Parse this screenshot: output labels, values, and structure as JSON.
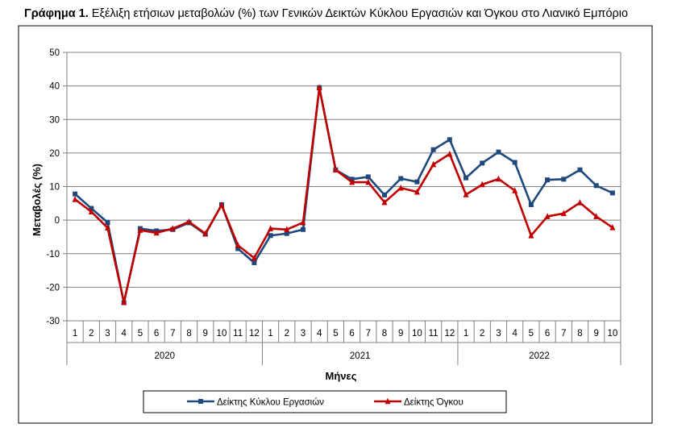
{
  "title": {
    "label": "Γράφημα 1.",
    "text": " Εξέλιξη ετήσιων μεταβολών (%) των Γενικών Δεικτών Κύκλου Εργασιών και Όγκου στο Λιανικό Εμπόριο"
  },
  "chart_data": {
    "type": "line",
    "ylabel": "Μεταβολές (%)",
    "xlabel": "Μήνες",
    "ylim": [
      -30,
      50
    ],
    "yticks": [
      -30,
      -20,
      -10,
      0,
      10,
      20,
      30,
      40,
      50
    ],
    "grid": true,
    "legend_position": "bottom",
    "years": [
      {
        "label": "2020",
        "months": [
          "1",
          "2",
          "3",
          "4",
          "5",
          "6",
          "7",
          "8",
          "9",
          "10",
          "11",
          "12"
        ]
      },
      {
        "label": "2021",
        "months": [
          "1",
          "2",
          "3",
          "4",
          "5",
          "6",
          "7",
          "8",
          "9",
          "10",
          "11",
          "12"
        ]
      },
      {
        "label": "2022",
        "months": [
          "1",
          "2",
          "3",
          "4",
          "5",
          "6",
          "7",
          "8",
          "9",
          "10"
        ]
      }
    ],
    "series": [
      {
        "name": "Δείκτης Κύκλου Εργασιών",
        "color": "#1f497d",
        "marker": "square",
        "values": [
          7.8,
          3.5,
          -0.7,
          -24.6,
          -2.5,
          -3.2,
          -2.8,
          -0.8,
          -4.2,
          4.6,
          -8.5,
          -12.7,
          -4.6,
          -4.0,
          -2.8,
          39.5,
          15.0,
          12.2,
          12.9,
          7.5,
          12.4,
          11.4,
          21.0,
          24.0,
          12.6,
          17.0,
          20.3,
          17.2,
          4.6,
          12.0,
          12.2,
          15.0,
          10.3,
          8.1
        ]
      },
      {
        "name": "Δείκτης Όγκου",
        "color": "#c00000",
        "marker": "triangle",
        "values": [
          6.2,
          2.5,
          -2.3,
          -24.5,
          -3.0,
          -3.8,
          -2.5,
          -0.5,
          -4.0,
          4.5,
          -7.5,
          -11.3,
          -2.5,
          -2.8,
          -0.7,
          39.5,
          15.0,
          11.3,
          11.3,
          5.3,
          9.6,
          8.4,
          16.6,
          19.7,
          7.6,
          10.6,
          12.3,
          8.8,
          -4.6,
          1.1,
          2.0,
          5.2,
          1.1,
          -2.2
        ]
      }
    ]
  }
}
